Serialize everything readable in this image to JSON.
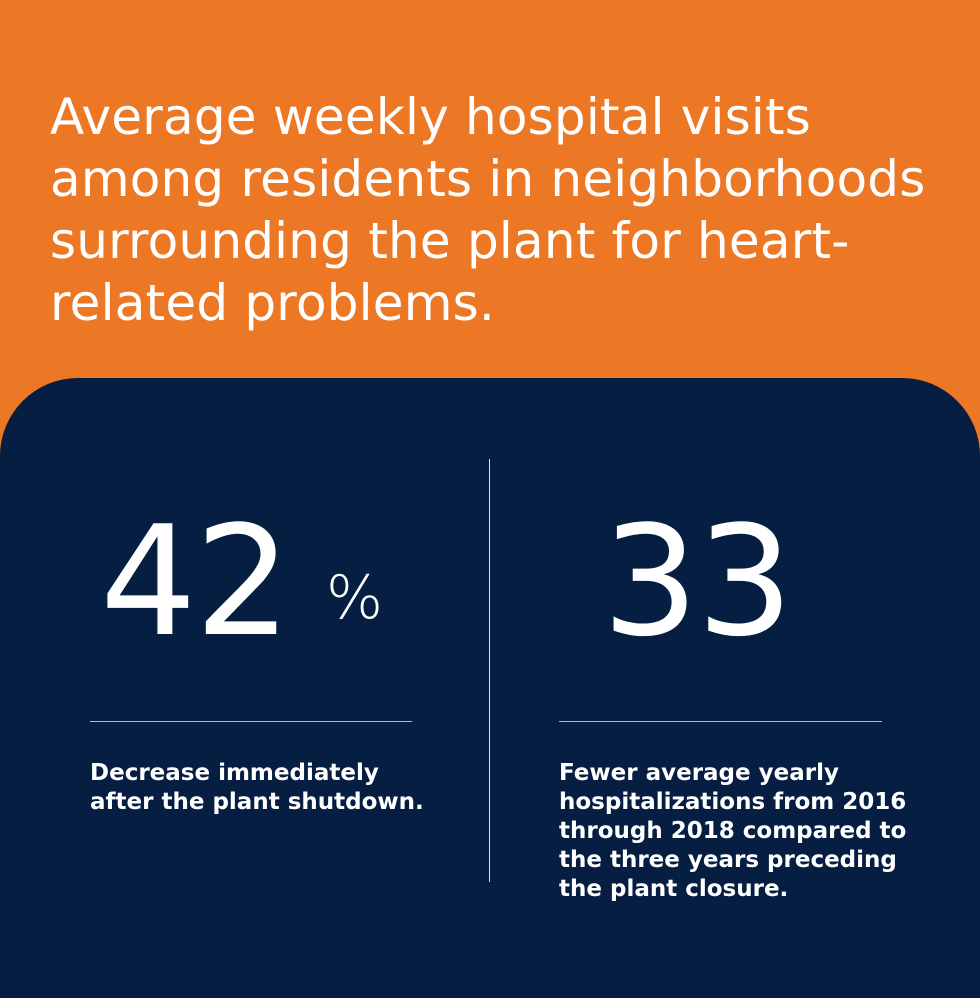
{
  "headline": "Average weekly hospital visits among residents in neighborhoods surrounding the plant for heart-related problems.",
  "stats": [
    {
      "value": "42",
      "unit": "%",
      "description": "Decrease immediately after the plant shutdown."
    },
    {
      "value": "33",
      "unit": "",
      "description": "Fewer average yearly hospitalizations from 2016 through 2018 compared to the three years preceding the plant closure."
    }
  ],
  "colors": {
    "header_bg": "#EC7724",
    "panel_bg": "#051E42",
    "text": "#FFFFFF",
    "divider": "#D9DEE7"
  }
}
